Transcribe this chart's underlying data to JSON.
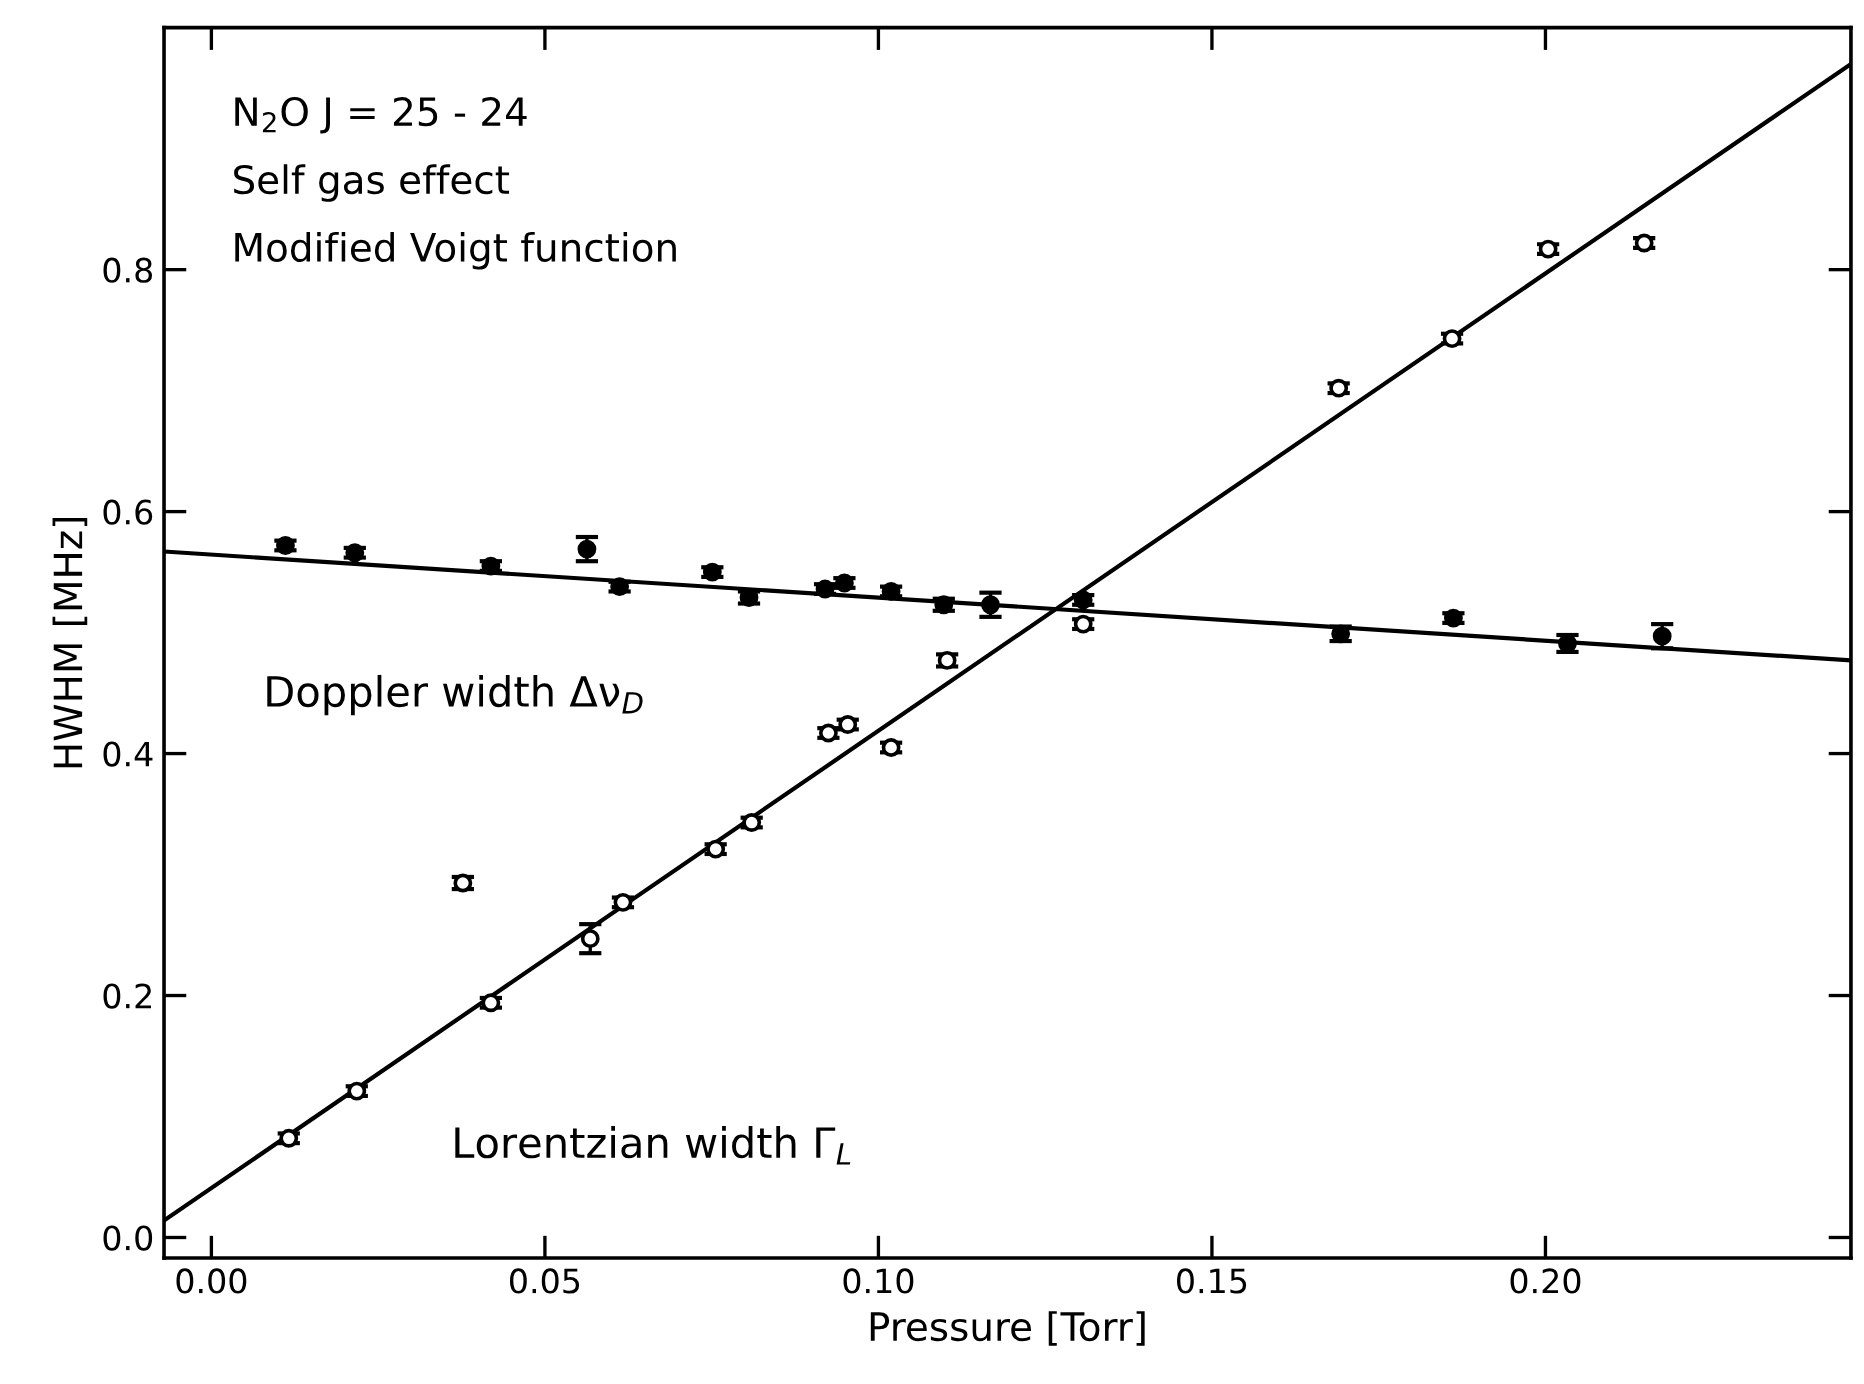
{
  "chart_data": {
    "type": "scatter",
    "xlabel": "Pressure [Torr]",
    "ylabel": "HWHM [MHz]",
    "xlim": [
      -0.0071,
      0.2458
    ],
    "ylim": [
      -0.017,
      1.0
    ],
    "xticks": [
      {
        "value": 0.0,
        "label": "0.00"
      },
      0.05,
      {
        "value": 0.1,
        "label": "0.10"
      },
      0.15,
      {
        "value": 0.2,
        "label": "0.20"
      }
    ],
    "yticks": [
      {
        "value": 0.0,
        "label": "0.0"
      },
      0.2,
      0.4,
      0.6,
      0.8
    ],
    "grid": false,
    "legend": false,
    "series": [
      {
        "name": "Doppler width Δν$_{D}$",
        "marker": "circle",
        "color": "#000000",
        "x": [
          0.0111,
          0.0215,
          0.0419,
          0.0563,
          0.0612,
          0.0751,
          0.0806,
          0.092,
          0.0949,
          0.1019,
          0.1098,
          0.1168,
          0.1307,
          0.1693,
          0.1862,
          0.2033,
          0.2175
        ],
        "values": [
          0.572,
          0.566,
          0.555,
          0.569,
          0.538,
          0.55,
          0.529,
          0.536,
          0.541,
          0.534,
          0.523,
          0.523,
          0.527,
          0.499,
          0.512,
          0.491,
          0.497
        ],
        "errors": [
          0.004,
          0.004,
          0.004,
          0.01,
          0.004,
          0.004,
          0.005,
          0.004,
          0.004,
          0.004,
          0.005,
          0.01,
          0.004,
          0.006,
          0.004,
          0.007,
          0.01
        ]
      },
      {
        "name": "Lorentzian width Γ$_{L}$",
        "marker": "circle",
        "color": "#ffffff",
        "x": [
          0.0116,
          0.0218,
          0.0377,
          0.0419,
          0.0568,
          0.0617,
          0.0756,
          0.081,
          0.0925,
          0.0954,
          0.1019,
          0.1103,
          0.1307,
          0.169,
          0.186,
          0.2004,
          0.2148
        ],
        "values": [
          0.082,
          0.121,
          0.293,
          0.194,
          0.247,
          0.277,
          0.321,
          0.343,
          0.417,
          0.424,
          0.405,
          0.477,
          0.507,
          0.702,
          0.743,
          0.817,
          0.822
        ],
        "errors": [
          0.004,
          0.004,
          0.005,
          0.004,
          0.012,
          0.004,
          0.004,
          0.004,
          0.004,
          0.004,
          0.004,
          0.005,
          0.004,
          0.004,
          0.004,
          0.004,
          0.004
        ]
      },
      {
        "type": "line",
        "color": "#000000",
        "line_style": "solid",
        "x": [
          -0.0071,
          0.2458
        ],
        "values": [
          0.567,
          0.477
        ]
      },
      {
        "type": "line",
        "color": "#000000",
        "line_style": "solid",
        "x": [
          -0.0071,
          0.2458
        ],
        "values": [
          0.014,
          0.97
        ]
      }
    ],
    "annotations": [
      "N$_{2}$O J = 25 - 24",
      "Self gas effect",
      "Modified Voigt function"
    ]
  }
}
